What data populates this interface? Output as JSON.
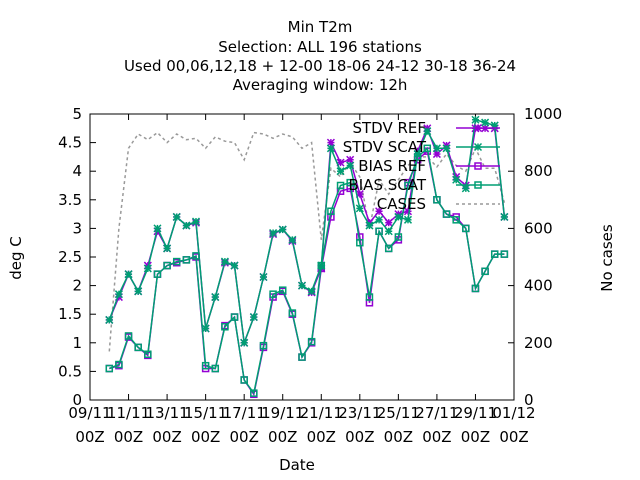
{
  "chart_data": {
    "type": "line",
    "title_lines": [
      "Min T2m",
      "Selection: ALL     196 stations",
      "Used  00,06,12,18 + 12-00 18-06 24-12 30-18 36-24",
      "Averaging window: 12h"
    ],
    "xlabel": "Date",
    "ylabel": "deg C",
    "y2label": "No cases",
    "x_ticks": [
      [
        "09/11",
        "00Z"
      ],
      [
        "11/11",
        "00Z"
      ],
      [
        "13/11",
        "00Z"
      ],
      [
        "15/11",
        "00Z"
      ],
      [
        "17/11",
        "00Z"
      ],
      [
        "19/11",
        "00Z"
      ],
      [
        "21/11",
        "00Z"
      ],
      [
        "23/11",
        "00Z"
      ],
      [
        "25/11",
        "00Z"
      ],
      [
        "27/11",
        "00Z"
      ],
      [
        "29/11",
        "00Z"
      ],
      [
        "01/12",
        "00Z"
      ]
    ],
    "y_ticks": [
      "0",
      "0.5",
      "1",
      "1.5",
      "2",
      "2.5",
      "3",
      "3.5",
      "4",
      "4.5",
      "5"
    ],
    "y2_ticks": [
      "0",
      "200",
      "400",
      "600",
      "800",
      "1000"
    ],
    "ylim": [
      0,
      5
    ],
    "y2lim": [
      0,
      1000
    ],
    "xlim_days": [
      0,
      22
    ],
    "legend_position": "top-right",
    "grid": false,
    "series": [
      {
        "name": "STDV REF",
        "axis": "y1",
        "color": "#9400d3",
        "marker": "x-star",
        "dash": false,
        "x": [
          1,
          1.5,
          2,
          2.5,
          3,
          3.5,
          4,
          4.5,
          5,
          5.5,
          6,
          6.5,
          7,
          7.5,
          8,
          8.5,
          9,
          9.5,
          10,
          10.5,
          11,
          11.5,
          12,
          12.5,
          13,
          13.5,
          14,
          14.5,
          15,
          15.5,
          16,
          16.5,
          17,
          17.5,
          18,
          18.5,
          19,
          19.5,
          20,
          20.5,
          21,
          21.5
        ],
        "values": [
          1.4,
          1.8,
          2.2,
          1.9,
          2.35,
          2.95,
          2.65,
          3.2,
          3.05,
          3.1,
          1.25,
          1.8,
          2.4,
          2.35,
          1.0,
          1.45,
          2.15,
          2.9,
          2.98,
          2.78,
          2.0,
          1.88,
          2.3,
          4.5,
          4.15,
          4.2,
          3.6,
          3.1,
          3.3,
          3.1,
          3.25,
          3.3,
          4.35,
          4.75,
          4.3,
          4.45,
          3.9,
          3.75,
          4.75,
          4.75,
          4.75,
          3.2
        ]
      },
      {
        "name": "STDV SCAT",
        "axis": "y1",
        "color": "#009e73",
        "marker": "x-star",
        "dash": false,
        "x": [
          1,
          1.5,
          2,
          2.5,
          3,
          3.5,
          4,
          4.5,
          5,
          5.5,
          6,
          6.5,
          7,
          7.5,
          8,
          8.5,
          9,
          9.5,
          10,
          10.5,
          11,
          11.5,
          12,
          12.5,
          13,
          13.5,
          14,
          14.5,
          15,
          15.5,
          16,
          16.5,
          17,
          17.5,
          18,
          18.5,
          19,
          19.5,
          20,
          20.5,
          21,
          21.5
        ],
        "values": [
          1.4,
          1.85,
          2.2,
          1.9,
          2.3,
          3.0,
          2.65,
          3.2,
          3.05,
          3.12,
          1.25,
          1.8,
          2.42,
          2.35,
          1.0,
          1.45,
          2.15,
          2.92,
          2.98,
          2.8,
          2.0,
          1.9,
          2.35,
          4.4,
          4.0,
          4.1,
          3.35,
          3.05,
          3.15,
          2.95,
          3.2,
          3.15,
          4.3,
          4.7,
          4.4,
          4.4,
          3.85,
          3.7,
          4.9,
          4.85,
          4.8,
          3.2
        ]
      },
      {
        "name": "BIAS REF",
        "axis": "y1",
        "color": "#9400d3",
        "marker": "open-square",
        "dash": false,
        "x": [
          1,
          1.5,
          2,
          2.5,
          3,
          3.5,
          4,
          4.5,
          5,
          5.5,
          6,
          6.5,
          7,
          7.5,
          8,
          8.5,
          9,
          9.5,
          10,
          10.5,
          11,
          11.5,
          12,
          12.5,
          13,
          13.5,
          14,
          14.5,
          15,
          15.5,
          16,
          16.5,
          17,
          17.5,
          18,
          18.5,
          19,
          19.5,
          20,
          20.5,
          21,
          21.5
        ],
        "values": [
          0.55,
          0.6,
          1.1,
          0.92,
          0.78,
          2.2,
          2.35,
          2.4,
          2.45,
          2.5,
          0.55,
          0.55,
          1.3,
          1.45,
          0.35,
          0.1,
          0.92,
          1.8,
          1.9,
          1.5,
          0.75,
          1.0,
          2.3,
          3.2,
          3.65,
          3.7,
          2.85,
          1.7,
          2.95,
          2.65,
          2.8,
          3.8,
          4.2,
          4.35,
          3.5,
          3.25,
          3.2,
          3.0,
          1.95,
          2.25,
          2.55,
          2.55
        ]
      },
      {
        "name": "BIAS SCAT",
        "axis": "y1",
        "color": "#009e73",
        "marker": "open-square",
        "dash": false,
        "x": [
          1,
          1.5,
          2,
          2.5,
          3,
          3.5,
          4,
          4.5,
          5,
          5.5,
          6,
          6.5,
          7,
          7.5,
          8,
          8.5,
          9,
          9.5,
          10,
          10.5,
          11,
          11.5,
          12,
          12.5,
          13,
          13.5,
          14,
          14.5,
          15,
          15.5,
          16,
          16.5,
          17,
          17.5,
          18,
          18.5,
          19,
          19.5,
          20,
          20.5,
          21,
          21.5
        ],
        "values": [
          0.55,
          0.62,
          1.12,
          0.92,
          0.8,
          2.2,
          2.35,
          2.42,
          2.45,
          2.52,
          0.6,
          0.55,
          1.28,
          1.45,
          0.35,
          0.12,
          0.95,
          1.85,
          1.92,
          1.52,
          0.75,
          1.02,
          2.35,
          3.3,
          3.75,
          3.8,
          2.75,
          1.8,
          2.95,
          2.65,
          2.85,
          3.75,
          4.25,
          4.4,
          3.5,
          3.25,
          3.15,
          3.0,
          1.95,
          2.25,
          2.55,
          2.55
        ]
      },
      {
        "name": "CASES",
        "axis": "y2",
        "color": "#999999",
        "marker": "none",
        "dash": true,
        "x": [
          1,
          1.5,
          2,
          2.5,
          3,
          3.5,
          4,
          4.5,
          5,
          5.5,
          6,
          6.5,
          7,
          7.5,
          8,
          8.5,
          9,
          9.5,
          10,
          10.5,
          11,
          11.5,
          12,
          12.5,
          13,
          13.5,
          14,
          14.5,
          15,
          15.5,
          16,
          16.5,
          17,
          17.5,
          18,
          18.5,
          19,
          19.5,
          20,
          20.5,
          21,
          21.5
        ],
        "values": [
          170,
          600,
          880,
          930,
          910,
          935,
          900,
          930,
          910,
          915,
          880,
          920,
          905,
          900,
          840,
          935,
          930,
          915,
          930,
          920,
          880,
          900,
          560,
          810,
          780,
          830,
          780,
          600,
          770,
          720,
          770,
          820,
          850,
          850,
          815,
          860,
          820,
          800,
          880,
          810,
          810,
          690
        ]
      }
    ]
  }
}
